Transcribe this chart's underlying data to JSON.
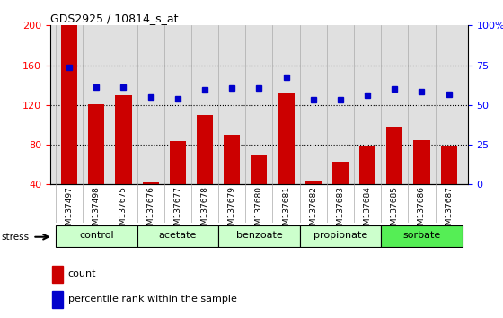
{
  "title": "GDS2925 / 10814_s_at",
  "samples": [
    "GSM137497",
    "GSM137498",
    "GSM137675",
    "GSM137676",
    "GSM137677",
    "GSM137678",
    "GSM137679",
    "GSM137680",
    "GSM137681",
    "GSM137682",
    "GSM137683",
    "GSM137684",
    "GSM137685",
    "GSM137686",
    "GSM137687"
  ],
  "counts": [
    200,
    121,
    130,
    42,
    84,
    110,
    90,
    70,
    132,
    44,
    63,
    78,
    98,
    85,
    79
  ],
  "percentiles": [
    158,
    138,
    138,
    128,
    126,
    135,
    137,
    137,
    148,
    125,
    125,
    130,
    136,
    133,
    131
  ],
  "groups": [
    {
      "name": "control",
      "start": 0,
      "end": 3,
      "color": "#ccffcc"
    },
    {
      "name": "acetate",
      "start": 3,
      "end": 6,
      "color": "#ccffcc"
    },
    {
      "name": "benzoate",
      "start": 6,
      "end": 9,
      "color": "#ccffcc"
    },
    {
      "name": "propionate",
      "start": 9,
      "end": 12,
      "color": "#ccffcc"
    },
    {
      "name": "sorbate",
      "start": 12,
      "end": 15,
      "color": "#55ee55"
    }
  ],
  "ylim_left": [
    40,
    200
  ],
  "ylim_right": [
    0,
    100
  ],
  "bar_color": "#cc0000",
  "dot_color": "#0000cc",
  "bg_color": "#e0e0e0",
  "stress_label": "stress",
  "legend_count": "count",
  "legend_pct": "percentile rank within the sample"
}
